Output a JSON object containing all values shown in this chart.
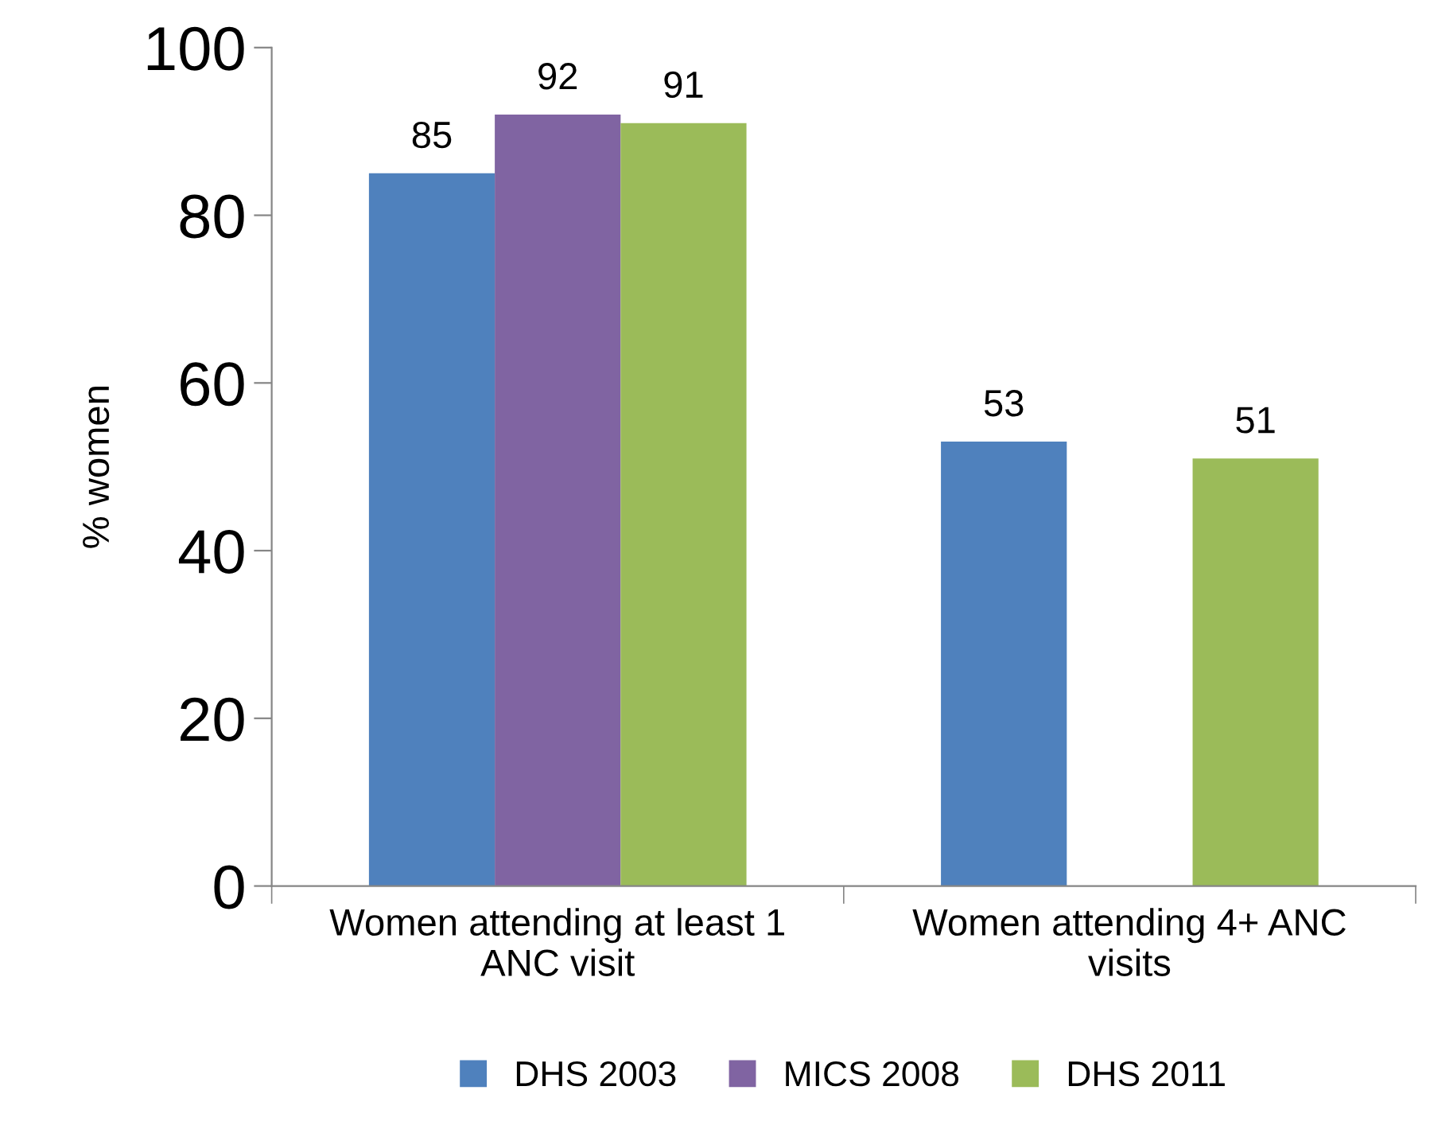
{
  "chart_data": {
    "type": "bar",
    "ylabel": "% women",
    "categories": [
      "Women attending at least 1 ANC visit",
      "Women attending 4+ ANC visits"
    ],
    "series": [
      {
        "name": "DHS 2003",
        "color": "#4f81bd",
        "values": [
          85,
          53
        ]
      },
      {
        "name": "MICS 2008",
        "color": "#8064a2",
        "values": [
          92,
          null
        ]
      },
      {
        "name": "DHS 2011",
        "color": "#9bbb59",
        "values": [
          91,
          51
        ]
      }
    ],
    "ylim": [
      0,
      100
    ],
    "yticks": [
      0,
      20,
      40,
      60,
      80,
      100
    ],
    "data_labels": true,
    "grid": false,
    "legend": "bottom"
  }
}
